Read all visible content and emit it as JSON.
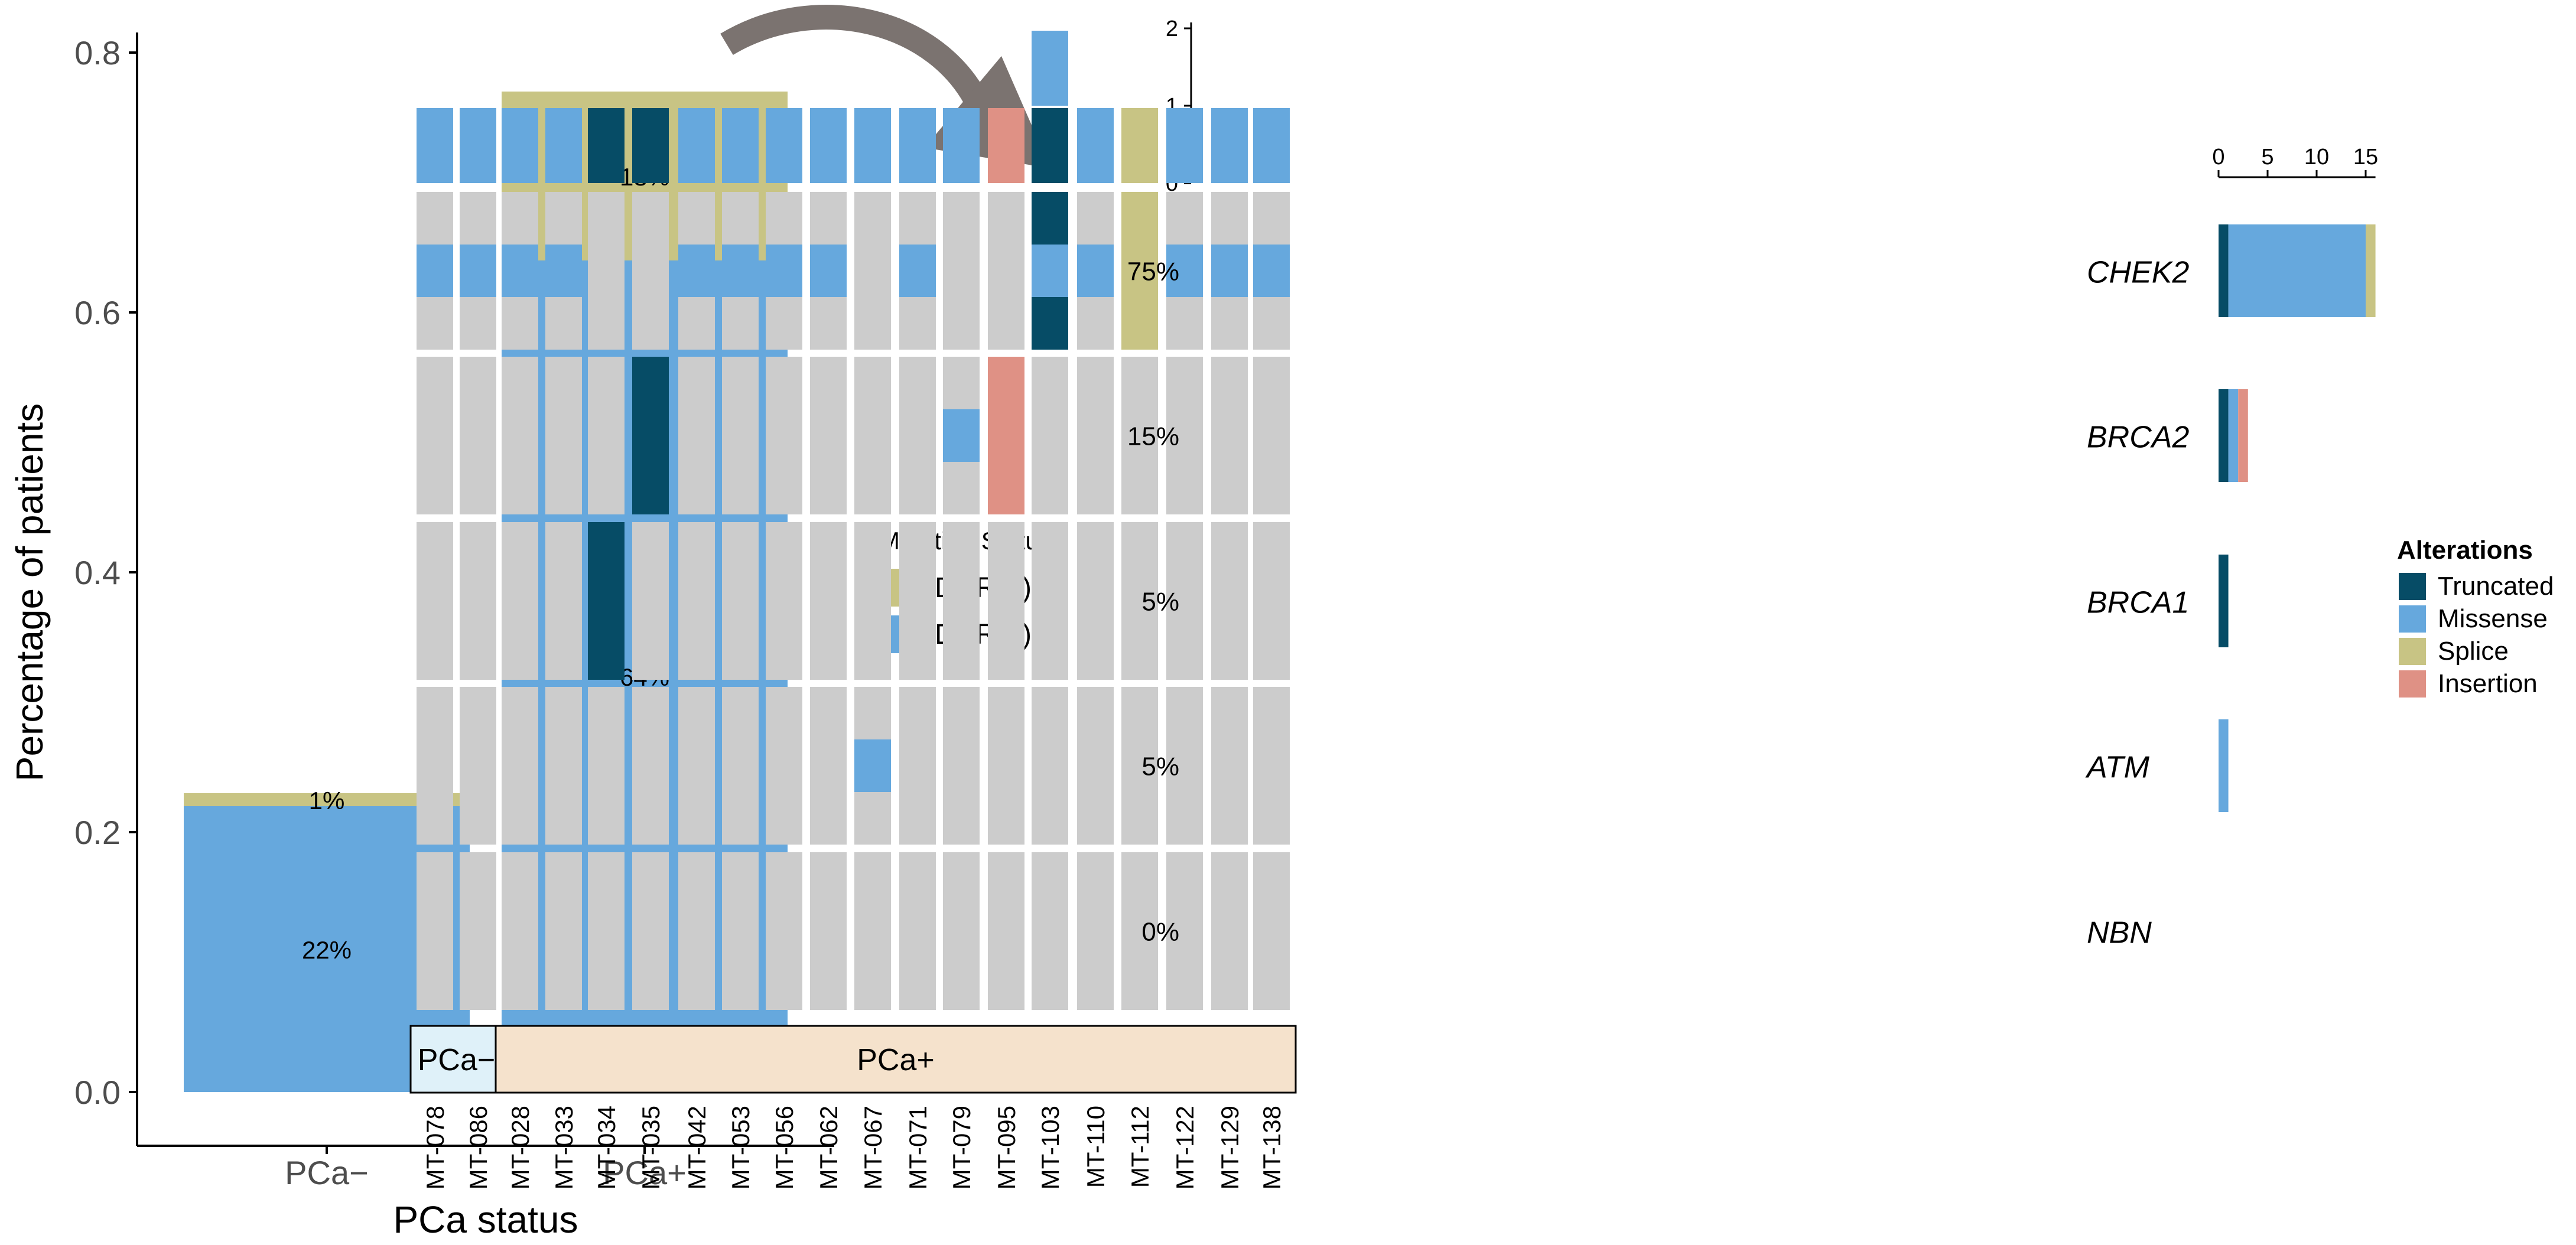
{
  "colors": {
    "ddr_pos": "#c8c484",
    "ddr_neg": "#66a8dd",
    "truncated": "#064c66",
    "missense": "#66a8dd",
    "splice": "#c8c484",
    "insertion": "#df9185",
    "wildtype": "#cccccc",
    "pca_neg_fill": "#dff1f9",
    "pca_pos_fill": "#f5e2cc",
    "arrow": "#7b7370"
  },
  "chart_data": [
    {
      "type": "bar",
      "stacked": true,
      "categories": [
        "PCa−",
        "PCa+"
      ],
      "series": [
        {
          "name": "DDR(+)",
          "values": [
            0.01,
            0.13
          ],
          "labels": [
            "1%",
            "13%"
          ],
          "color_key": "ddr_pos"
        },
        {
          "name": "DDR(−)",
          "values": [
            0.22,
            0.64
          ],
          "labels": [
            "22%",
            "64%"
          ],
          "color_key": "ddr_neg"
        }
      ],
      "xlabel": "PCa status",
      "ylabel": "Percentage of patients",
      "ylim": [
        0,
        0.8
      ],
      "yticks": [
        0.0,
        0.2,
        0.4,
        0.6,
        0.8
      ],
      "ytick_labels": [
        "0.0",
        "0.2",
        "0.4",
        "0.6",
        "0.8"
      ],
      "legend": {
        "title": "Mutation Status",
        "placement": "right",
        "entries": [
          "DDR(+)",
          "DDR(−)"
        ]
      }
    },
    {
      "type": "heatmap",
      "subtype": "oncoprint",
      "samples": [
        "MT-078",
        "MT-086",
        "MT-028",
        "MT-033",
        "MT-034",
        "MT-035",
        "MT-042",
        "MT-053",
        "MT-056",
        "MT-062",
        "MT-067",
        "MT-071",
        "MT-079",
        "MT-095",
        "MT-103",
        "MT-110",
        "MT-112",
        "MT-122",
        "MT-129",
        "MT-138"
      ],
      "genes": [
        "CHEK2",
        "BRCA2",
        "BRCA1",
        "ATM",
        "NBN"
      ],
      "gene_percent": [
        "75%",
        "15%",
        "5%",
        "5%",
        "0%"
      ],
      "groups": [
        {
          "label": "PCa−",
          "count": 2,
          "fill_key": "pca_neg_fill"
        },
        {
          "label": "PCa+",
          "count": 18,
          "fill_key": "pca_pos_fill"
        }
      ],
      "alterations": {
        "CHEK2": [
          "Missense",
          "Missense",
          "Missense",
          "Missense",
          "",
          "",
          "Missense",
          "Missense",
          "Missense",
          "Missense",
          "",
          "Missense",
          "",
          "",
          "Truncated+Missense",
          "Missense",
          "Splice",
          "Missense",
          "Missense",
          "Missense"
        ],
        "BRCA2": [
          "",
          "",
          "",
          "",
          "",
          "Truncated",
          "",
          "",
          "",
          "",
          "",
          "",
          "Missense",
          "Insertion",
          "",
          "",
          "",
          "",
          "",
          ""
        ],
        "BRCA1": [
          "",
          "",
          "",
          "",
          "Truncated",
          "",
          "",
          "",
          "",
          "",
          "",
          "",
          "",
          "",
          "",
          "",
          "",
          "",
          "",
          ""
        ],
        "ATM": [
          "",
          "",
          "",
          "",
          "",
          "",
          "",
          "",
          "",
          "",
          "Missense",
          "",
          "",
          "",
          "",
          "",
          "",
          "",
          "",
          ""
        ],
        "NBN": [
          "",
          "",
          "",
          "",
          "",
          "",
          "",
          "",
          "",
          "",
          "",
          "",
          "",
          "",
          "",
          "",
          "",
          "",
          "",
          ""
        ]
      },
      "top_bar": {
        "yticks": [
          0,
          1,
          2
        ],
        "ytick_labels": [
          "0",
          "1",
          "2"
        ],
        "stacks": [
          [
            [
              "Missense",
              1
            ]
          ],
          [
            [
              "Missense",
              1
            ]
          ],
          [
            [
              "Missense",
              1
            ]
          ],
          [
            [
              "Missense",
              1
            ]
          ],
          [
            [
              "Truncated",
              1
            ]
          ],
          [
            [
              "Truncated",
              1
            ]
          ],
          [
            [
              "Missense",
              1
            ]
          ],
          [
            [
              "Missense",
              1
            ]
          ],
          [
            [
              "Missense",
              1
            ]
          ],
          [
            [
              "Missense",
              1
            ]
          ],
          [
            [
              "Missense",
              1
            ]
          ],
          [
            [
              "Missense",
              1
            ]
          ],
          [
            [
              "Missense",
              1
            ]
          ],
          [
            [
              "Insertion",
              1
            ]
          ],
          [
            [
              "Truncated",
              1
            ],
            [
              "Missense",
              1
            ]
          ],
          [
            [
              "Missense",
              1
            ]
          ],
          [
            [
              "Splice",
              1
            ]
          ],
          [
            [
              "Missense",
              1
            ]
          ],
          [
            [
              "Missense",
              1
            ]
          ],
          [
            [
              "Missense",
              1
            ]
          ]
        ]
      },
      "right_bar": {
        "xticks": [
          0,
          5,
          10,
          15
        ],
        "xtick_labels": [
          "0",
          "5",
          "10",
          "15"
        ],
        "xlim": [
          0,
          17
        ],
        "stacks": {
          "CHEK2": [
            [
              "Truncated",
              1
            ],
            [
              "Missense",
              14
            ],
            [
              "Splice",
              1
            ]
          ],
          "BRCA2": [
            [
              "Truncated",
              1
            ],
            [
              "Missense",
              1
            ],
            [
              "Insertion",
              1
            ]
          ],
          "BRCA1": [
            [
              "Truncated",
              1
            ]
          ],
          "ATM": [
            [
              "Missense",
              1
            ]
          ],
          "NBN": []
        }
      },
      "legend": {
        "title": "Alterations",
        "placement": "right",
        "entries": [
          {
            "label": "Truncated",
            "color_key": "truncated"
          },
          {
            "label": "Missense",
            "color_key": "missense"
          },
          {
            "label": "Splice",
            "color_key": "splice"
          },
          {
            "label": "Insertion",
            "color_key": "insertion"
          }
        ]
      }
    }
  ]
}
